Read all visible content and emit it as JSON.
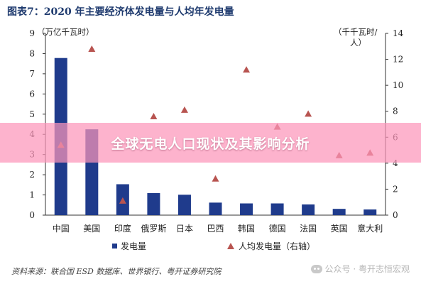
{
  "title": "图表7：2020 年主要经济体发电量与人均年发电量",
  "chart_data": {
    "type": "bar",
    "categories": [
      "中国",
      "美国",
      "印度",
      "俄罗斯",
      "日本",
      "巴西",
      "韩国",
      "德国",
      "法国",
      "英国",
      "意大利"
    ],
    "series": [
      {
        "name": "发电量",
        "type": "bar",
        "axis": "left",
        "color": "#1f3b8c",
        "values": [
          7.78,
          4.25,
          1.53,
          1.09,
          1.01,
          0.62,
          0.58,
          0.58,
          0.53,
          0.31,
          0.28
        ]
      },
      {
        "name": "人均发电量（右轴）",
        "type": "marker",
        "marker": "triangle",
        "axis": "right",
        "color": "#b85450",
        "values": [
          5.4,
          12.8,
          1.1,
          7.6,
          8.1,
          2.8,
          11.2,
          6.8,
          7.8,
          4.6,
          4.8
        ]
      }
    ],
    "ylabel": "（万亿千瓦时）",
    "ylabel_right": "（千千瓦时/人）",
    "ylim": [
      0,
      9
    ],
    "ylim_right": [
      0,
      14
    ],
    "yticks": [
      "0",
      "1",
      "2",
      "3",
      "4",
      "5",
      "6",
      "7",
      "8",
      "9"
    ],
    "yticks_right": [
      "0",
      "2",
      "4",
      "6",
      "8",
      "10",
      "12",
      "14"
    ],
    "legend_position": "bottom",
    "grid": false
  },
  "banner": "全球无电人口现状及其影响分析",
  "source": "资料来源：联合国 ESD 数据库、世界银行、粤开证券研究院",
  "watermark": "公众号 · 粤开志恒宏观"
}
